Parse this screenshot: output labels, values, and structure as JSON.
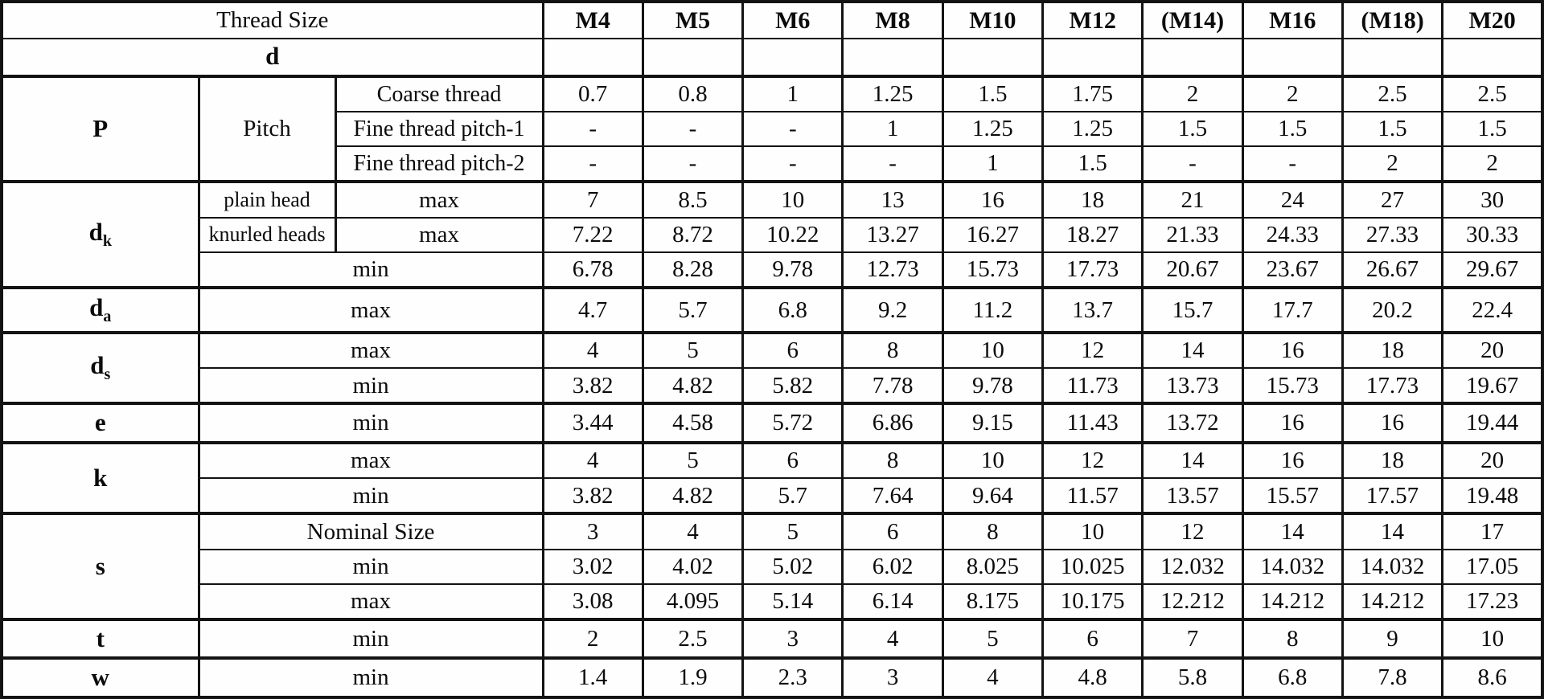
{
  "table": {
    "header": {
      "thread_size": "Thread Size"
    },
    "columns": [
      "M4",
      "M5",
      "M6",
      "M8",
      "M10",
      "M12",
      "(M14)",
      "M16",
      "(M18)",
      "M20"
    ],
    "heads": {
      "d": "d",
      "p": "P",
      "pitch": "Pitch",
      "dk": [
        "d",
        "k"
      ],
      "da": [
        "d",
        "a"
      ],
      "ds": [
        "d",
        "s"
      ],
      "e": "e",
      "k": "k",
      "s": "s",
      "t": "t",
      "w": "w"
    },
    "rows": {
      "d": {
        "values": [
          "",
          "",
          "",
          "",
          "",
          "",
          "",
          "",
          "",
          ""
        ]
      },
      "p_coarse": {
        "label": "Coarse thread",
        "values": [
          "0.7",
          "0.8",
          "1",
          "1.25",
          "1.5",
          "1.75",
          "2",
          "2",
          "2.5",
          "2.5"
        ]
      },
      "p_fine1": {
        "label": "Fine thread pitch-1",
        "values": [
          "-",
          "-",
          "-",
          "1",
          "1.25",
          "1.25",
          "1.5",
          "1.5",
          "1.5",
          "1.5"
        ]
      },
      "p_fine2": {
        "label": "Fine thread pitch-2",
        "values": [
          "-",
          "-",
          "-",
          "-",
          "1",
          "1.5",
          "-",
          "-",
          "2",
          "2"
        ]
      },
      "dk_plain": {
        "head": "plain head",
        "label": "max",
        "values": [
          "7",
          "8.5",
          "10",
          "13",
          "16",
          "18",
          "21",
          "24",
          "27",
          "30"
        ]
      },
      "dk_knurled": {
        "head": "knurled heads",
        "label": "max",
        "values": [
          "7.22",
          "8.72",
          "10.22",
          "13.27",
          "16.27",
          "18.27",
          "21.33",
          "24.33",
          "27.33",
          "30.33"
        ]
      },
      "dk_min": {
        "label": "min",
        "values": [
          "6.78",
          "8.28",
          "9.78",
          "12.73",
          "15.73",
          "17.73",
          "20.67",
          "23.67",
          "26.67",
          "29.67"
        ]
      },
      "da_max": {
        "label": "max",
        "values": [
          "4.7",
          "5.7",
          "6.8",
          "9.2",
          "11.2",
          "13.7",
          "15.7",
          "17.7",
          "20.2",
          "22.4"
        ]
      },
      "ds_max": {
        "label": "max",
        "values": [
          "4",
          "5",
          "6",
          "8",
          "10",
          "12",
          "14",
          "16",
          "18",
          "20"
        ]
      },
      "ds_min": {
        "label": "min",
        "values": [
          "3.82",
          "4.82",
          "5.82",
          "7.78",
          "9.78",
          "11.73",
          "13.73",
          "15.73",
          "17.73",
          "19.67"
        ]
      },
      "e_min": {
        "label": "min",
        "values": [
          "3.44",
          "4.58",
          "5.72",
          "6.86",
          "9.15",
          "11.43",
          "13.72",
          "16",
          "16",
          "19.44"
        ]
      },
      "k_max": {
        "label": "max",
        "values": [
          "4",
          "5",
          "6",
          "8",
          "10",
          "12",
          "14",
          "16",
          "18",
          "20"
        ]
      },
      "k_min": {
        "label": "min",
        "values": [
          "3.82",
          "4.82",
          "5.7",
          "7.64",
          "9.64",
          "11.57",
          "13.57",
          "15.57",
          "17.57",
          "19.48"
        ]
      },
      "s_nominal": {
        "label": "Nominal Size",
        "values": [
          "3",
          "4",
          "5",
          "6",
          "8",
          "10",
          "12",
          "14",
          "14",
          "17"
        ]
      },
      "s_min": {
        "label": "min",
        "values": [
          "3.02",
          "4.02",
          "5.02",
          "6.02",
          "8.025",
          "10.025",
          "12.032",
          "14.032",
          "14.032",
          "17.05"
        ]
      },
      "s_max": {
        "label": "max",
        "values": [
          "3.08",
          "4.095",
          "5.14",
          "6.14",
          "8.175",
          "10.175",
          "12.212",
          "14.212",
          "14.212",
          "17.23"
        ]
      },
      "t_min": {
        "label": "min",
        "values": [
          "2",
          "2.5",
          "3",
          "4",
          "5",
          "6",
          "7",
          "8",
          "9",
          "10"
        ]
      },
      "w_min": {
        "label": "min",
        "values": [
          "1.4",
          "1.9",
          "2.3",
          "3",
          "4",
          "4.8",
          "5.8",
          "6.8",
          "7.8",
          "8.6"
        ]
      }
    }
  }
}
